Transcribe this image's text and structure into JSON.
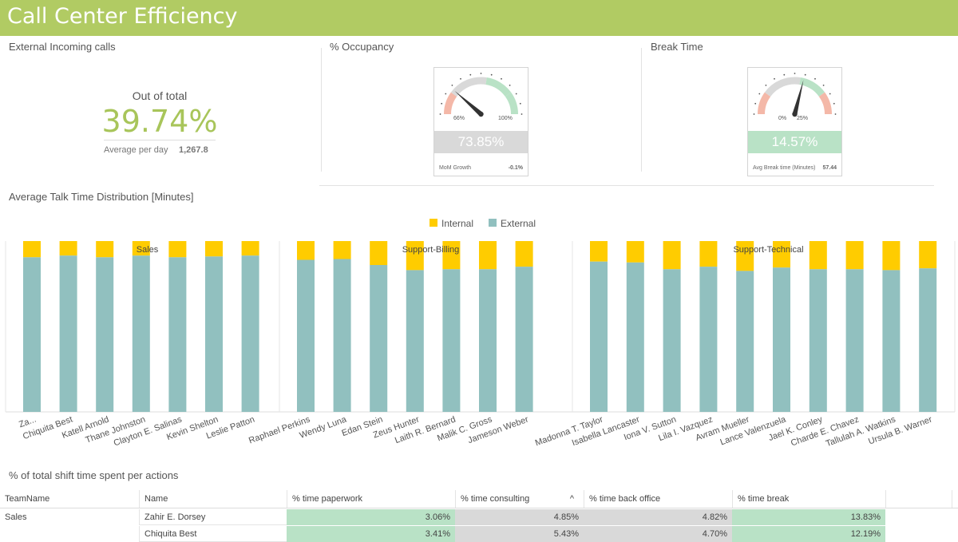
{
  "header": {
    "title": "Call Center Efficiency"
  },
  "kpi_incoming": {
    "title": "External Incoming calls",
    "subtitle": "Out of total",
    "value": "39.74%",
    "avg_label": "Average per day",
    "avg_value": "1,267.8"
  },
  "gauge_occupancy": {
    "title": "% Occupancy",
    "min_label": "66%",
    "max_label": "100%",
    "value": "73.85%",
    "needle_fraction": 0.23,
    "footer_label": "MoM Growth",
    "footer_value": "-0.1%",
    "value_color": "#d9d9d9"
  },
  "gauge_break": {
    "title": "Break Time",
    "min_label": "0%",
    "max_label": "25%",
    "value": "14.57%",
    "needle_fraction": 0.58,
    "footer_label": "Avg Break time (Minutes)",
    "footer_value": "57.44",
    "value_color": "#b9e2c6"
  },
  "colors": {
    "header": "#b1cb63",
    "internal": "#ffcc00",
    "external": "#91c0bf",
    "kpi": "#a8c55a",
    "good": "#b9e2c6",
    "neutral": "#d9d9d9"
  },
  "chart_title": "Average Talk Time Distribution [Minutes]",
  "chart_data": {
    "type": "bar",
    "stacked": true,
    "legend": [
      "Internal",
      "External"
    ],
    "legend_position": "top-center",
    "groups": [
      {
        "name": "Sales",
        "categories": [
          "Za...",
          "Chiquita Best",
          "Katell Arnold",
          "Thane Johnston",
          "Clayton E. Salinas",
          "Kevin Shelton",
          "Leslie Patton"
        ],
        "internal": [
          9.5,
          8.5,
          9.5,
          8.5,
          9.5,
          9,
          8.5
        ],
        "external": [
          90.5,
          91.5,
          90.5,
          91.5,
          90.5,
          91,
          91.5
        ]
      },
      {
        "name": "Support-Billing",
        "categories": [
          "Raphael Perkins",
          "Wendy Luna",
          "Edan Stein",
          "Zeus Hunter",
          "Laith R. Bernard",
          "Malik C. Gross",
          "Jameson Weber"
        ],
        "internal": [
          11,
          10.5,
          14,
          17,
          16.5,
          16.5,
          15
        ],
        "external": [
          89,
          89.5,
          86,
          83,
          83.5,
          83.5,
          85
        ]
      },
      {
        "name": "Support-Technical",
        "categories": [
          "Madonna T. Taylor",
          "Isabella Lancaster",
          "Iona V. Sutton",
          "Lila I. Vazquez",
          "Avram Mueller",
          "Lance Valenzuela",
          "Jael K. Conley",
          "Charde E. Chavez",
          "Tallulah A. Watkins",
          "Ursula B. Warner"
        ],
        "internal": [
          12,
          12.5,
          16.5,
          15,
          17.5,
          15.5,
          16.5,
          16.5,
          17,
          16
        ],
        "external": [
          88,
          87.5,
          83.5,
          85,
          82.5,
          84.5,
          83.5,
          83.5,
          83,
          84
        ]
      }
    ]
  },
  "table": {
    "title": "% of total shift time spent per actions",
    "headers": [
      "TeamName",
      "Name",
      "% time paperwork",
      "% time consulting",
      "% time back office",
      "% time break"
    ],
    "sort_indicator": "^",
    "rows": [
      [
        "Sales",
        "Zahir E. Dorsey",
        "3.06%",
        "4.85%",
        "4.82%",
        "13.83%"
      ],
      [
        "",
        "Chiquita Best",
        "3.41%",
        "5.43%",
        "4.70%",
        "12.19%"
      ]
    ]
  }
}
